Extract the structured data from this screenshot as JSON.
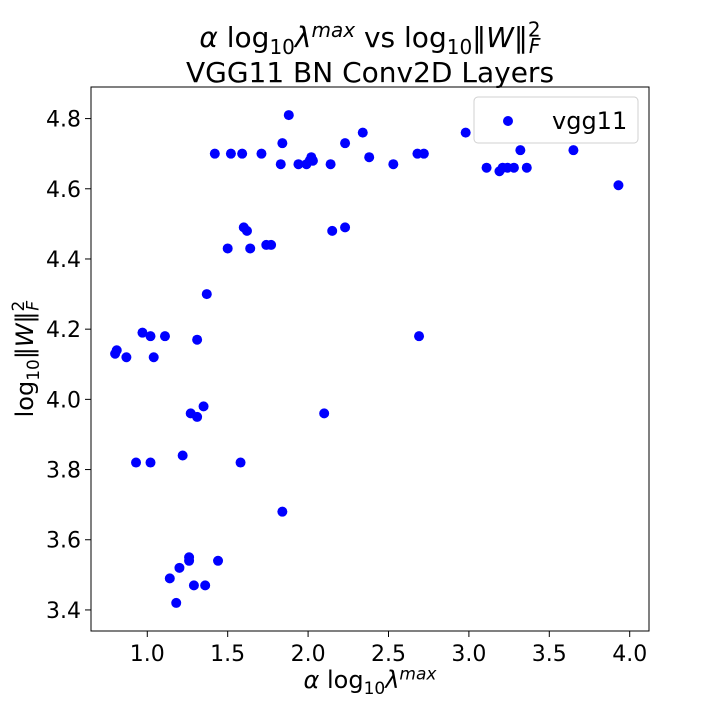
{
  "chart_data": {
    "type": "scatter",
    "title_line1": "α log₁₀λᵐᵃˣ vs log₁₀‖W‖²_F",
    "title_line2": "VGG11 BN  Conv2D Layers",
    "xlabel": "α log₁₀λᵐᵃˣ",
    "ylabel": "log₁₀‖W‖²_F",
    "xlim": [
      0.65,
      4.12
    ],
    "ylim": [
      3.34,
      4.89
    ],
    "x_ticks": [
      1.0,
      1.5,
      2.0,
      2.5,
      3.0,
      3.5,
      4.0
    ],
    "x_tick_labels": [
      "1.0",
      "1.5",
      "2.0",
      "2.5",
      "3.0",
      "3.5",
      "4.0"
    ],
    "y_ticks": [
      3.4,
      3.6,
      3.8,
      4.0,
      4.2,
      4.4,
      4.6,
      4.8
    ],
    "y_tick_labels": [
      "3.4",
      "3.6",
      "3.8",
      "4.0",
      "4.2",
      "4.4",
      "4.6",
      "4.8"
    ],
    "grid": false,
    "legend_position": "top-right",
    "series": [
      {
        "name": "vgg11",
        "color": "#0000ff",
        "points": [
          [
            0.8,
            4.13
          ],
          [
            0.81,
            4.14
          ],
          [
            0.87,
            4.12
          ],
          [
            0.97,
            4.19
          ],
          [
            1.02,
            4.18
          ],
          [
            1.04,
            4.12
          ],
          [
            1.11,
            4.18
          ],
          [
            1.31,
            4.17
          ],
          [
            1.37,
            4.3
          ],
          [
            1.42,
            4.7
          ],
          [
            1.5,
            4.43
          ],
          [
            1.52,
            4.7
          ],
          [
            1.59,
            4.7
          ],
          [
            1.6,
            4.49
          ],
          [
            1.62,
            4.48
          ],
          [
            1.64,
            4.43
          ],
          [
            1.71,
            4.7
          ],
          [
            1.74,
            4.44
          ],
          [
            1.77,
            4.44
          ],
          [
            1.83,
            4.67
          ],
          [
            1.84,
            4.73
          ],
          [
            1.88,
            4.81
          ],
          [
            1.94,
            4.67
          ],
          [
            1.99,
            4.67
          ],
          [
            2.01,
            4.68
          ],
          [
            2.02,
            4.69
          ],
          [
            2.03,
            4.68
          ],
          [
            2.14,
            4.67
          ],
          [
            2.15,
            4.48
          ],
          [
            2.23,
            4.73
          ],
          [
            2.23,
            4.49
          ],
          [
            2.34,
            4.76
          ],
          [
            2.38,
            4.69
          ],
          [
            2.53,
            4.67
          ],
          [
            2.68,
            4.7
          ],
          [
            2.72,
            4.7
          ],
          [
            2.69,
            4.18
          ],
          [
            2.98,
            4.76
          ],
          [
            3.11,
            4.66
          ],
          [
            3.19,
            4.65
          ],
          [
            3.21,
            4.66
          ],
          [
            3.24,
            4.66
          ],
          [
            3.28,
            4.66
          ],
          [
            3.32,
            4.71
          ],
          [
            3.36,
            4.66
          ],
          [
            3.65,
            4.71
          ],
          [
            3.93,
            4.61
          ],
          [
            0.93,
            3.82
          ],
          [
            1.02,
            3.82
          ],
          [
            1.22,
            3.84
          ],
          [
            1.27,
            3.96
          ],
          [
            1.31,
            3.95
          ],
          [
            1.35,
            3.98
          ],
          [
            1.58,
            3.82
          ],
          [
            2.1,
            3.96
          ],
          [
            1.84,
            3.68
          ],
          [
            1.14,
            3.49
          ],
          [
            1.18,
            3.42
          ],
          [
            1.2,
            3.52
          ],
          [
            1.26,
            3.55
          ],
          [
            1.26,
            3.54
          ],
          [
            1.29,
            3.47
          ],
          [
            1.36,
            3.47
          ],
          [
            1.44,
            3.54
          ]
        ]
      }
    ]
  }
}
